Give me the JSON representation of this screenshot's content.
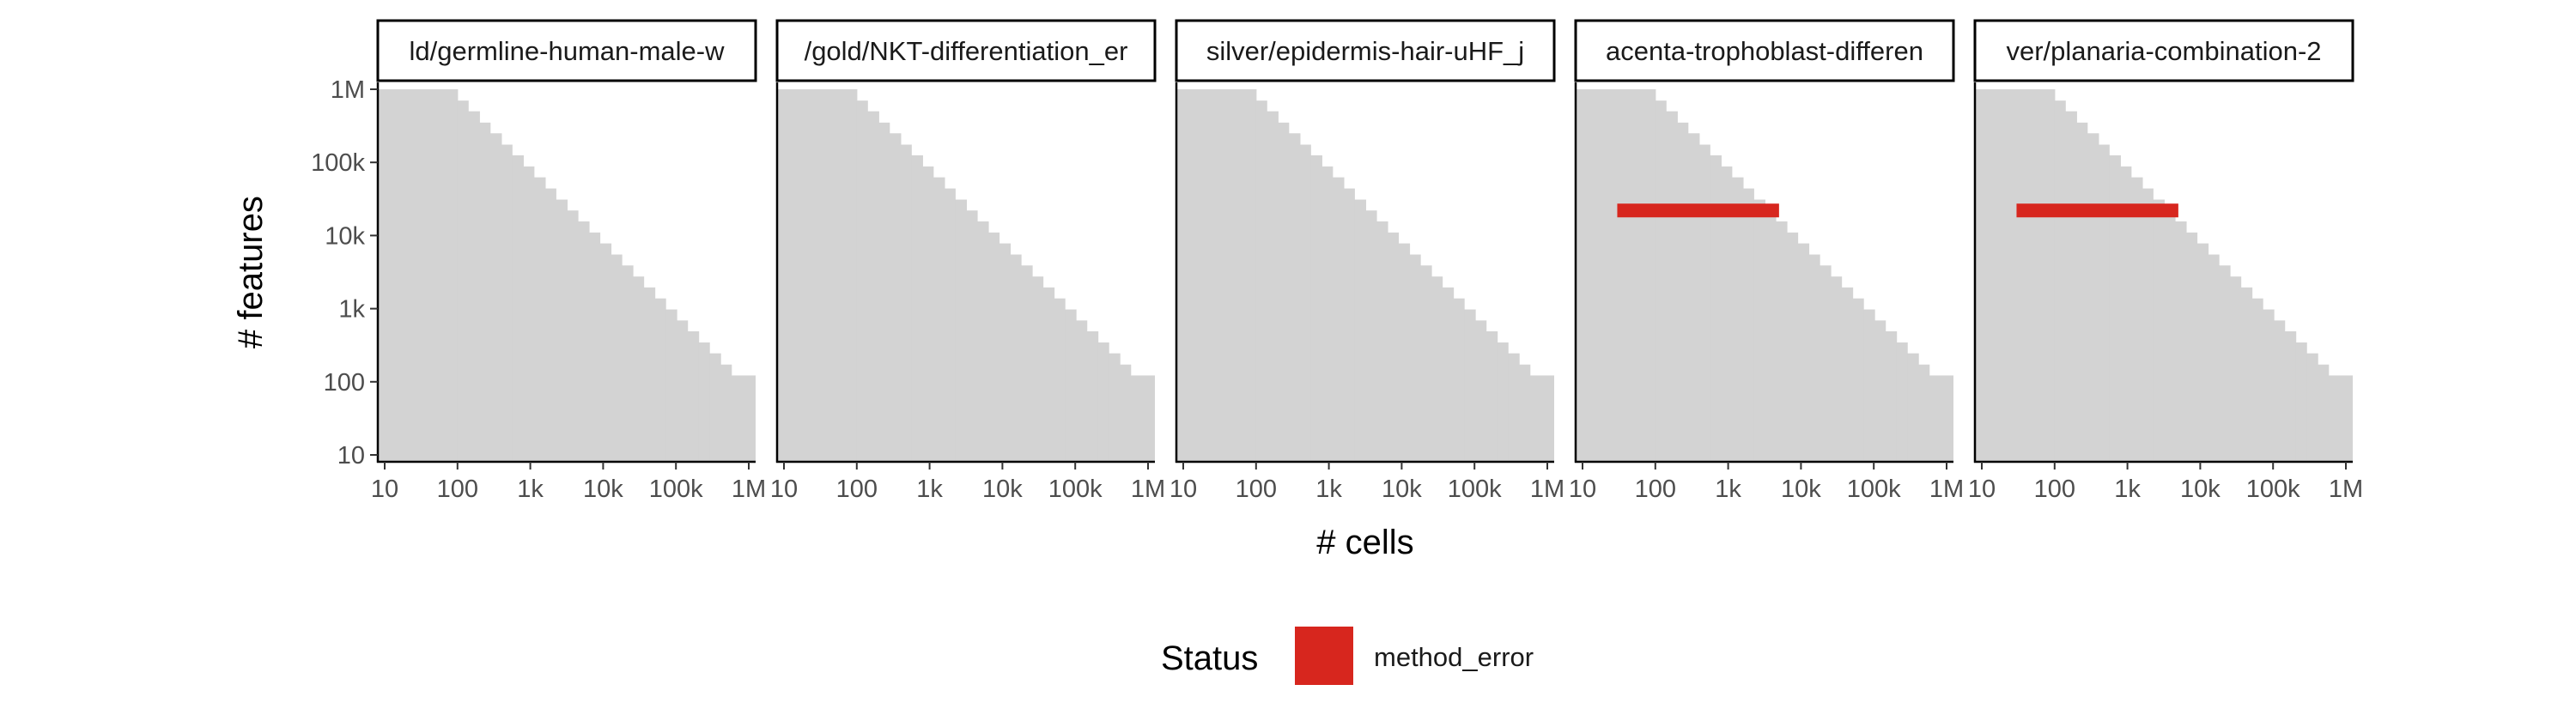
{
  "chart_data": {
    "type": "heatmap",
    "x_scale": "log10",
    "y_scale": "log10",
    "xlabel": "# cells",
    "ylabel": "# features",
    "xlim": [
      10,
      1000000
    ],
    "ylim": [
      10,
      1000000
    ],
    "x_ticks": [
      10,
      100,
      1000,
      10000,
      100000,
      1000000
    ],
    "x_tick_labels": [
      "10",
      "100",
      "1k",
      "10k",
      "100k",
      "1M"
    ],
    "y_ticks": [
      10,
      100,
      1000,
      10000,
      100000,
      1000000
    ],
    "y_tick_labels": [
      "10",
      "100",
      "1k",
      "10k",
      "100k",
      "1M"
    ],
    "background_region": {
      "description_color": "#d3d3d3",
      "staircase_steps": [
        {
          "x_from": 10,
          "x_to": 100,
          "y_top": 1000000
        },
        {
          "x_from": 100,
          "x_to": 140,
          "y_top": 700000
        },
        {
          "x_from": 140,
          "x_to": 200,
          "y_top": 500000
        },
        {
          "x_from": 200,
          "x_to": 280,
          "y_top": 350000
        },
        {
          "x_from": 280,
          "x_to": 400,
          "y_top": 250000
        },
        {
          "x_from": 400,
          "x_to": 560,
          "y_top": 175000
        },
        {
          "x_from": 560,
          "x_to": 800,
          "y_top": 125000
        },
        {
          "x_from": 800,
          "x_to": 1120,
          "y_top": 88000
        },
        {
          "x_from": 1120,
          "x_to": 1600,
          "y_top": 62500
        },
        {
          "x_from": 1600,
          "x_to": 2240,
          "y_top": 44000
        },
        {
          "x_from": 2240,
          "x_to": 3200,
          "y_top": 31000
        },
        {
          "x_from": 3200,
          "x_to": 4500,
          "y_top": 22000
        },
        {
          "x_from": 4500,
          "x_to": 6400,
          "y_top": 15600
        },
        {
          "x_from": 6400,
          "x_to": 9000,
          "y_top": 11000
        },
        {
          "x_from": 9000,
          "x_to": 12800,
          "y_top": 7800
        },
        {
          "x_from": 12800,
          "x_to": 18000,
          "y_top": 5500
        },
        {
          "x_from": 18000,
          "x_to": 25600,
          "y_top": 3900
        },
        {
          "x_from": 25600,
          "x_to": 36000,
          "y_top": 2750
        },
        {
          "x_from": 36000,
          "x_to": 51200,
          "y_top": 1950
        },
        {
          "x_from": 51200,
          "x_to": 72000,
          "y_top": 1380
        },
        {
          "x_from": 72000,
          "x_to": 102400,
          "y_top": 975
        },
        {
          "x_from": 102400,
          "x_to": 144000,
          "y_top": 690
        },
        {
          "x_from": 144000,
          "x_to": 204800,
          "y_top": 490
        },
        {
          "x_from": 204800,
          "x_to": 288000,
          "y_top": 345
        },
        {
          "x_from": 288000,
          "x_to": 409600,
          "y_top": 245
        },
        {
          "x_from": 409600,
          "x_to": 576000,
          "y_top": 172
        },
        {
          "x_from": 576000,
          "x_to": 1000000,
          "y_top": 122
        }
      ]
    },
    "panels": [
      {
        "title": "ld/germline-human-male-w",
        "datasets": []
      },
      {
        "title": "/gold/NKT-differentiation_er",
        "datasets": []
      },
      {
        "title": "silver/epidermis-hair-uHF_j",
        "datasets": []
      },
      {
        "title": "acenta-trophoblast-differen",
        "datasets": [
          {
            "status": "method_error",
            "x_from": 30,
            "x_to": 5000,
            "y_center": 22000
          }
        ]
      },
      {
        "title": "ver/planaria-combination-2",
        "datasets": [
          {
            "status": "method_error",
            "x_from": 30,
            "x_to": 5000,
            "y_center": 22000
          }
        ]
      }
    ],
    "legend": {
      "title": "Status",
      "position": "bottom",
      "entries": [
        {
          "label": "method_error",
          "color": "#d7261e"
        }
      ]
    },
    "grid": false
  }
}
